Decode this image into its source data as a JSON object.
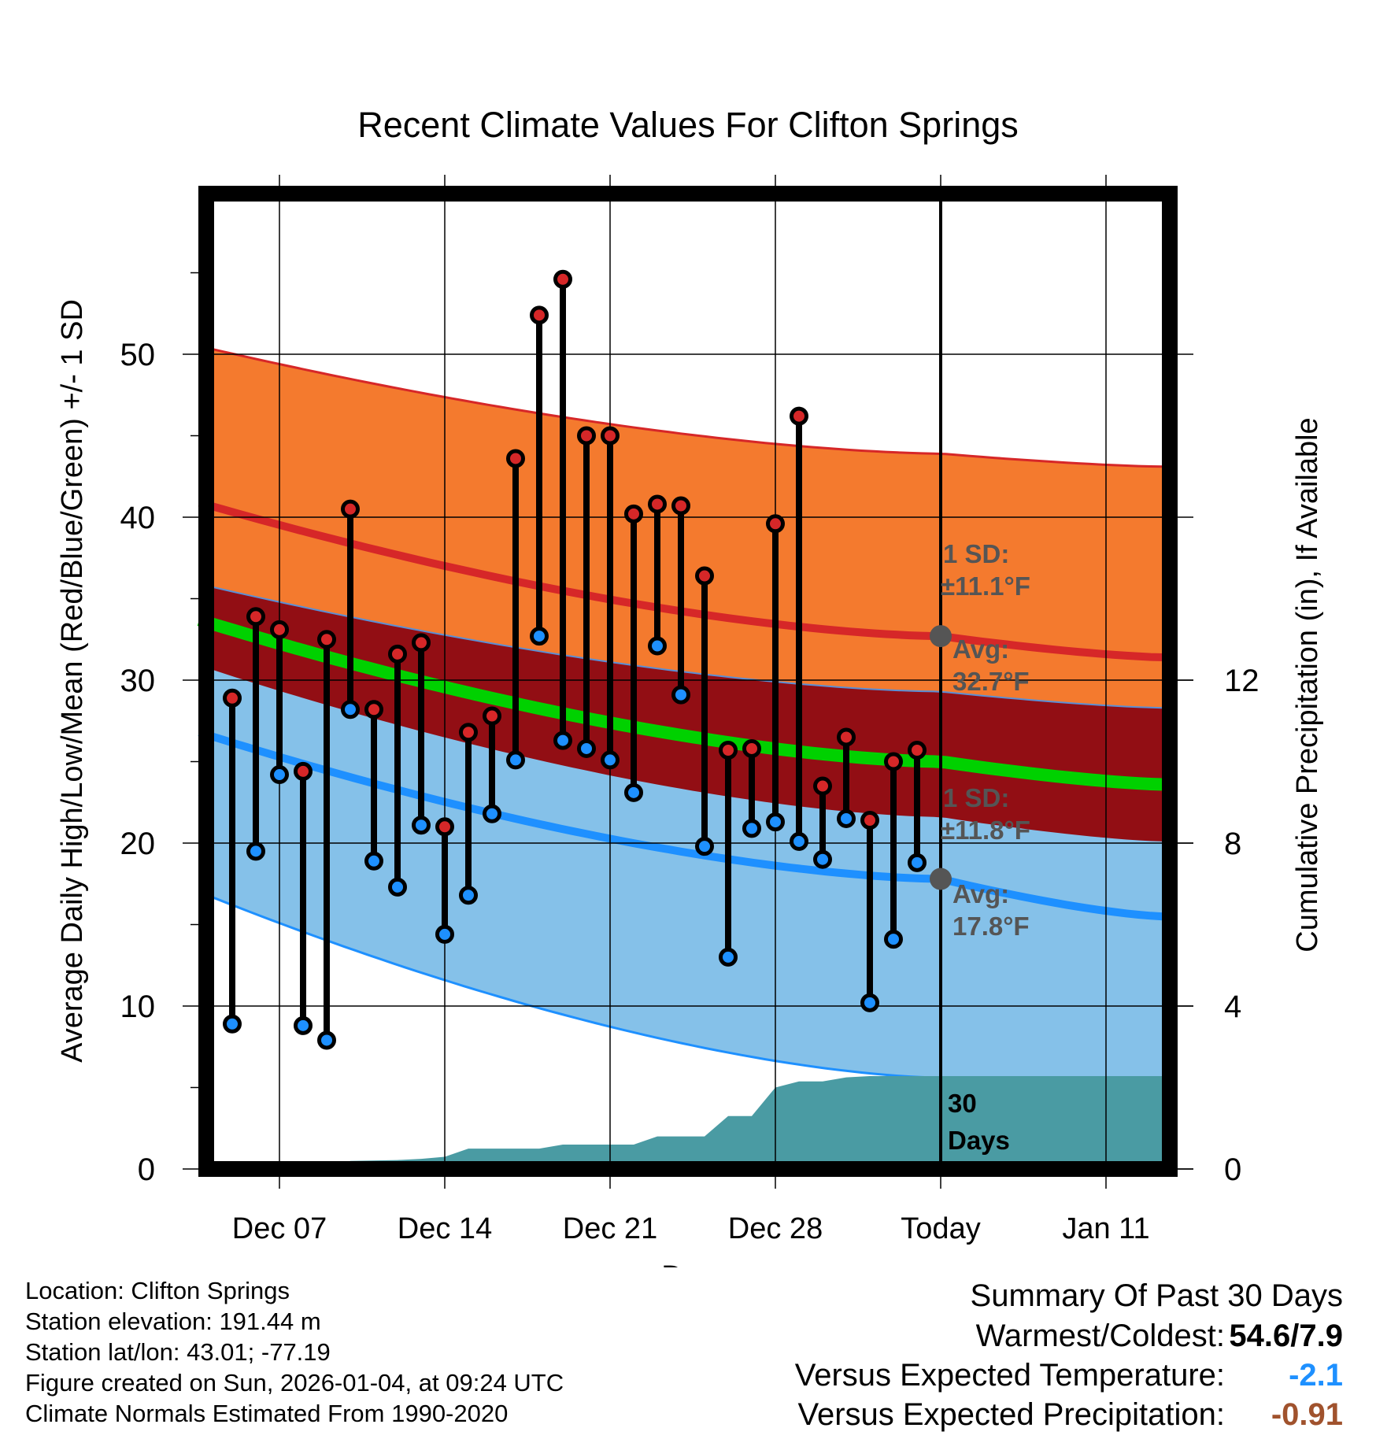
{
  "chart_data": {
    "type": "line",
    "title": "Recent Climate Values For Clifton Springs",
    "xlabel": "Day",
    "ylabel": "Average Daily High/Low/Mean (Red/Blue/Green) +/- 1 SD",
    "y2label": "Cumulative Precipitation (in), If Available",
    "x_range_days": [
      -31.4,
      9.4
    ],
    "ylim": [
      0,
      60
    ],
    "y2lim": [
      0,
      24
    ],
    "yticks": [
      0,
      10,
      20,
      30,
      40,
      50
    ],
    "y2ticks": [
      0,
      4,
      8,
      12
    ],
    "xticks": [
      {
        "day": -28,
        "label": "Dec 07"
      },
      {
        "day": -21,
        "label": "Dec 14"
      },
      {
        "day": -14,
        "label": "Dec 21"
      },
      {
        "day": -7,
        "label": "Dec 28"
      },
      {
        "day": 0,
        "label": "Today"
      },
      {
        "day": 7,
        "label": "Jan 11"
      }
    ],
    "normals": {
      "high_avg_start": 40.9,
      "high_avg_today": 32.7,
      "high_avg_end": 31.4,
      "high_upper_start": 50.5,
      "high_upper_today": 43.9,
      "high_upper_end": 43.1,
      "high_lower_start": 35.9,
      "high_lower_today": 29.3,
      "high_lower_end": 28.3,
      "low_avg_start": 26.8,
      "low_avg_today": 17.8,
      "low_avg_end": 15.5,
      "low_upper_start": 30.9,
      "low_upper_today": 21.6,
      "low_upper_end": 20.1,
      "low_lower_start": 17.0,
      "low_lower_today": 5.6,
      "low_lower_end": 5.6,
      "mean_start": 33.7,
      "mean_today": 25.0,
      "mean_end": 23.6
    },
    "series": [
      {
        "name": "Daily High",
        "color": "#d62728",
        "x": [
          -30,
          -29,
          -28,
          -27,
          -26,
          -25,
          -24,
          -23,
          -22,
          -21,
          -20,
          -19,
          -18,
          -17,
          -16,
          -15,
          -14,
          -13,
          -12,
          -11,
          -10,
          -9,
          -8,
          -7,
          -6,
          -5,
          -4,
          -3,
          -2,
          -1
        ],
        "values": [
          28.9,
          33.9,
          33.1,
          24.4,
          32.5,
          40.5,
          28.2,
          31.6,
          32.3,
          21.0,
          26.8,
          27.8,
          43.6,
          52.4,
          54.6,
          45.0,
          45.0,
          40.2,
          40.8,
          40.7,
          36.4,
          25.7,
          25.8,
          39.6,
          46.2,
          23.5,
          26.5,
          21.4,
          25.0,
          25.7
        ]
      },
      {
        "name": "Daily Low",
        "color": "#1e90ff",
        "x": [
          -30,
          -29,
          -28,
          -27,
          -26,
          -25,
          -24,
          -23,
          -22,
          -21,
          -20,
          -19,
          -18,
          -17,
          -16,
          -15,
          -14,
          -13,
          -12,
          -11,
          -10,
          -9,
          -8,
          -7,
          -6,
          -5,
          -4,
          -3,
          -2,
          -1
        ],
        "values": [
          8.9,
          19.5,
          24.2,
          8.8,
          7.9,
          28.2,
          18.9,
          17.3,
          21.1,
          14.4,
          16.8,
          21.8,
          25.1,
          32.7,
          26.3,
          25.8,
          25.1,
          23.1,
          32.1,
          29.1,
          19.8,
          13.0,
          20.9,
          21.3,
          20.1,
          19.0,
          21.5,
          10.2,
          14.1,
          18.8
        ]
      }
    ],
    "precipitation": {
      "x": [
        -26,
        -25,
        -23,
        -22,
        -21,
        -20,
        -19,
        -17,
        -16,
        -15,
        -14,
        -13,
        -12,
        -11,
        -10,
        -9,
        -8,
        -7,
        -6,
        -5,
        -4,
        -3,
        -2,
        -1,
        0,
        9.4
      ],
      "values": [
        0.0,
        0.2,
        0.22,
        0.25,
        0.3,
        0.5,
        0.5,
        0.5,
        0.6,
        0.6,
        0.6,
        0.6,
        0.8,
        0.8,
        0.8,
        1.3,
        1.3,
        2.0,
        2.15,
        2.15,
        2.25,
        2.28,
        2.28,
        2.28,
        2.28,
        2.28
      ]
    },
    "annotations": {
      "high_sd_label": "1 SD:",
      "high_sd_value": "±11.1°F",
      "high_avg_label": "Avg:",
      "high_avg_value": "32.7°F",
      "low_sd_label": "1 SD:",
      "low_sd_value": "±11.8°F",
      "low_avg_label": "Avg:",
      "low_avg_value": "17.8°F",
      "days_count": "30",
      "days_label": "Days"
    },
    "colors": {
      "high_band": "#f47a2e",
      "high_line": "#d62728",
      "overlap_band": "#920e14",
      "low_band": "#85c1e9",
      "low_line": "#1e90ff",
      "mean_line": "#00d100",
      "precip": "#4a9ba3",
      "annotation": "#555555"
    }
  },
  "footer": {
    "location": "Location: Clifton Springs",
    "elevation": "Station elevation: 191.44 m",
    "latlon": "Station lat/lon: 43.01; -77.19",
    "created": "Figure created on Sun, 2026-01-04, at 09:24 UTC",
    "normals": "Climate Normals Estimated From 1990-2020"
  },
  "summary": {
    "title": "Summary Of Past 30 Days",
    "warm_cold_label": "Warmest/Coldest:",
    "warm_cold_value": "54.6/7.9",
    "temp_label": "Versus Expected Temperature:",
    "temp_value": "-2.1",
    "temp_color": "#1e90ff",
    "precip_label": "Versus Expected Precipitation:",
    "precip_value": "-0.91",
    "precip_color": "#a0522d"
  }
}
